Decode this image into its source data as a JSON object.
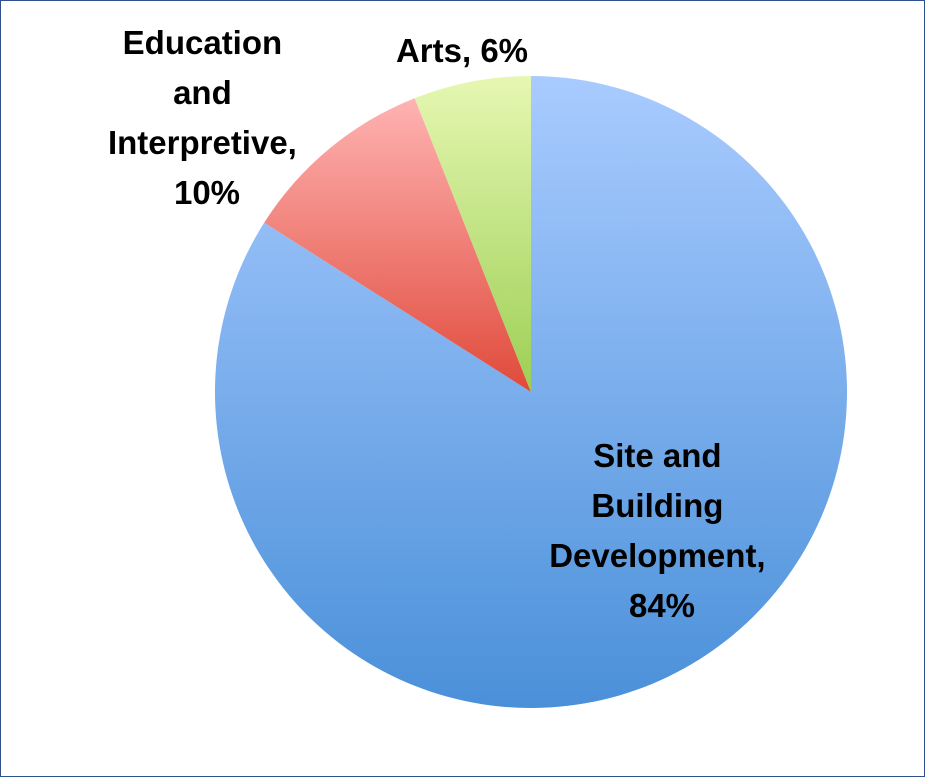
{
  "chart_data": {
    "type": "pie",
    "title": "",
    "slices": [
      {
        "label": "Site and Building Development",
        "label_lines": [
          "Site and",
          "Building",
          "Development,",
          "84%"
        ],
        "value": 84,
        "color_top": "#a9cbff",
        "color_bottom": "#4a90d9"
      },
      {
        "label": "Education and Interpretive",
        "label_lines": [
          "Education",
          "and",
          "Interpretive,",
          "10%"
        ],
        "value": 10,
        "color_top": "#ffb3b3",
        "color_bottom": "#e04a3a"
      },
      {
        "label": "Arts",
        "label_lines": [
          "Arts, 6%"
        ],
        "value": 6,
        "color_top": "#e6f7b2",
        "color_bottom": "#9ccf54"
      }
    ],
    "start_angle_deg": 0,
    "direction": "clockwise",
    "legend": "none",
    "data_labels": "category-and-percent"
  },
  "colors": {
    "border": "#2f4f8f",
    "background": "#ffffff"
  }
}
